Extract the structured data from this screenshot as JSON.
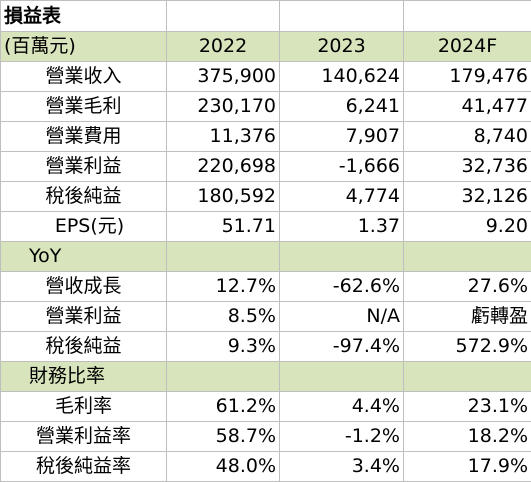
{
  "title": "損益表",
  "header": {
    "unit_label": "(百萬元)",
    "years": [
      "2022",
      "2023",
      "2024F"
    ]
  },
  "income_rows": [
    {
      "label": "營業收入",
      "values": [
        "375,900",
        "140,624",
        "179,476"
      ]
    },
    {
      "label": "營業毛利",
      "values": [
        "230,170",
        "6,241",
        "41,477"
      ]
    },
    {
      "label": "營業費用",
      "values": [
        "11,376",
        "7,907",
        "8,740"
      ]
    },
    {
      "label": "營業利益",
      "values": [
        "220,698",
        "-1,666",
        "32,736"
      ]
    },
    {
      "label": "稅後純益",
      "values": [
        "180,592",
        "4,774",
        "32,126"
      ]
    },
    {
      "label": "EPS(元)",
      "values": [
        "51.71",
        "1.37",
        "9.20"
      ]
    }
  ],
  "yoy": {
    "section_label": "YoY",
    "rows": [
      {
        "label": "營收成長",
        "values": [
          "12.7%",
          "-62.6%",
          "27.6%"
        ]
      },
      {
        "label": "營業利益",
        "values": [
          "8.5%",
          "N/A",
          "虧轉盈"
        ]
      },
      {
        "label": "稅後純益",
        "values": [
          "9.3%",
          "-97.4%",
          "572.9%"
        ]
      }
    ]
  },
  "ratios": {
    "section_label": "財務比率",
    "rows": [
      {
        "label": "毛利率",
        "values": [
          "61.2%",
          "4.4%",
          "23.1%"
        ]
      },
      {
        "label": "營業利益率",
        "values": [
          "58.7%",
          "-1.2%",
          "18.2%"
        ]
      },
      {
        "label": "稅後純益率",
        "values": [
          "48.0%",
          "3.4%",
          "17.9%"
        ]
      }
    ]
  },
  "colors": {
    "section_fill": "#d8e4bc",
    "grid_line": "#bfbfbf"
  }
}
